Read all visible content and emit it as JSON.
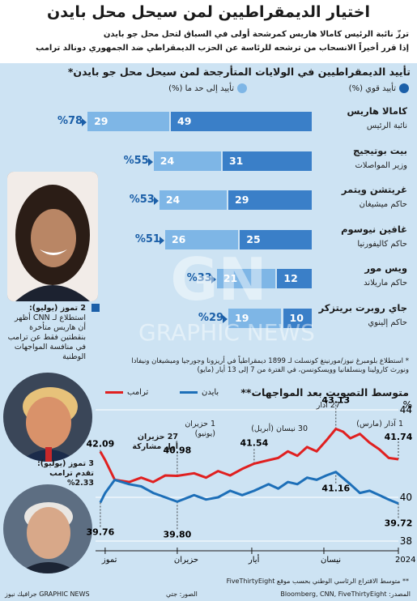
{
  "header": {
    "title": "اختيار الديمقراطيين لمن سيحل محل بايدن",
    "subtitle_1": "ترزّ نائبة الرئيس كامالا هاريس كمرشحة أولى في السباق لتحل محل جو بايدن",
    "subtitle_2": "إذا قرر أخيراً الانسحاب من ترشحه للرئاسة عن الحزب الديمقراطي ضد الجمهوري دونالد ترامب"
  },
  "support_section": {
    "title": "تأييد الديمقراطيين في الولايات المتأرجحة لمن سيحل محل جو بايدن*",
    "legend_strong": "تأييد قوي (%)",
    "legend_some": "تأييد إلى حد ما (%)",
    "colors": {
      "strong": "#3a7fc8",
      "some": "#7eb6e6",
      "panel": "#cde3f3",
      "accent": "#1b5fa8"
    },
    "candidates": [
      {
        "name": "كامالا هاريس",
        "role": "نائبة الرئيس",
        "strong": 49,
        "some": 29,
        "total_label": "%78"
      },
      {
        "name": "بيت بوتيجيج",
        "role": "وزير المواصلات",
        "strong": 31,
        "some": 24,
        "total_label": "%55"
      },
      {
        "name": "غريتشن ويتمر",
        "role": "حاكم ميشيغان",
        "strong": 29,
        "some": 24,
        "total_label": "%53"
      },
      {
        "name": "غافين نيوسوم",
        "role": "حاكم كاليفورنيا",
        "strong": 25,
        "some": 26,
        "total_label": "%51"
      },
      {
        "name": "ويس مور",
        "role": "حاكم ماريلاند",
        "strong": 12,
        "some": 21,
        "total_label": "%33"
      },
      {
        "name": "جاي روبرت بريتزكر",
        "role": "حاكم إلينوي",
        "strong": 10,
        "some": 19,
        "total_label": "%29"
      }
    ],
    "cnn_callout": {
      "date": "2 تموز (يوليو):",
      "text": "استطلاع لـ CNN أظهر أن هاريس متأخرة بنقطتين فقط عن ترامب في منافسة المواجهات الوطنية"
    },
    "footnote": "* استطلاع بلومبرغ نيوز/مورنينغ كونسلت لـ 1899 ديمقراطياً في أريزونا وجورجيا وميشيغان ونيفادا ونورث كارولينا وبنسلفانيا وويسكونسن، في الفترة من 7 إلى 13 أيار (مايو)"
  },
  "trend_section": {
    "title": "متوسط التصويت بعد المواجهات**",
    "legend_trump": "ترامب",
    "legend_biden": "بايدن",
    "colors": {
      "trump": "#e02020",
      "biden": "#1d6fb8"
    },
    "annotations": {
      "jun27": "27 حزيران",
      "jun27_sub": "أول مشاركة",
      "jul3": "3 تموز (يوليو):",
      "jul3_sub": "تقدم ترامب",
      "jul3_margin": "%2.33",
      "jun1": "1 حزيران (يونيو)",
      "apr30": "30 نيسان (أبريل)",
      "mar27": "27 آذار",
      "mar1": "1 آذار (مارس)"
    },
    "footnote": "** متوسط الاقتراع الرئاسي الوطني بحسب موقع FiveThirtyEight"
  },
  "chart_data": [
    {
      "type": "bar",
      "title": "تأييد الديمقراطيين في الولايات المتأرجحة لمن سيحل محل جو بايدن*",
      "categories": [
        "كامالا هاريس",
        "بيت بوتيجيج",
        "غريتشن ويتمر",
        "غافين نيوسوم",
        "ويس مور",
        "جاي روبرت بريتزكر"
      ],
      "series": [
        {
          "name": "تأييد قوي (%)",
          "values": [
            49,
            31,
            29,
            25,
            12,
            10
          ]
        },
        {
          "name": "تأييد إلى حد ما (%)",
          "values": [
            29,
            24,
            24,
            26,
            21,
            19
          ]
        }
      ],
      "stacked": true,
      "totals": [
        78,
        55,
        53,
        51,
        33,
        29
      ],
      "legend_position": "top"
    },
    {
      "type": "line",
      "title": "متوسط التصويت بعد المواجهات**",
      "x_ticks": [
        "آذار 2024",
        "نيسان",
        "أيار",
        "حزيران",
        "تموز"
      ],
      "y_ticks": [
        38,
        40,
        44
      ],
      "ylim": [
        38,
        44
      ],
      "x_range": [
        "2024-03-01",
        "2024-07-05"
      ],
      "series": [
        {
          "name": "ترامب",
          "points": [
            [
              "2024-03-01",
              41.74
            ],
            [
              "2024-03-05",
              41.8
            ],
            [
              "2024-03-09",
              42.2
            ],
            [
              "2024-03-13",
              42.5
            ],
            [
              "2024-03-17",
              42.9
            ],
            [
              "2024-03-21",
              42.7
            ],
            [
              "2024-03-24",
              43.0
            ],
            [
              "2024-03-27",
              43.13
            ],
            [
              "2024-03-31",
              42.6
            ],
            [
              "2024-04-04",
              42.1
            ],
            [
              "2024-04-08",
              42.3
            ],
            [
              "2024-04-12",
              41.9
            ],
            [
              "2024-04-16",
              42.1
            ],
            [
              "2024-04-20",
              41.8
            ],
            [
              "2024-04-24",
              41.7
            ],
            [
              "2024-04-30",
              41.54
            ],
            [
              "2024-05-05",
              41.3
            ],
            [
              "2024-05-10",
              41.0
            ],
            [
              "2024-05-15",
              41.2
            ],
            [
              "2024-05-20",
              40.9
            ],
            [
              "2024-05-25",
              41.1
            ],
            [
              "2024-06-01",
              40.98
            ],
            [
              "2024-06-06",
              41.0
            ],
            [
              "2024-06-11",
              40.7
            ],
            [
              "2024-06-16",
              40.9
            ],
            [
              "2024-06-21",
              40.7
            ],
            [
              "2024-06-27",
              40.8
            ],
            [
              "2024-07-01",
              41.7
            ],
            [
              "2024-07-03",
              42.09
            ]
          ]
        },
        {
          "name": "بايدن",
          "points": [
            [
              "2024-03-01",
              39.72
            ],
            [
              "2024-03-05",
              39.9
            ],
            [
              "2024-03-09",
              40.1
            ],
            [
              "2024-03-13",
              40.3
            ],
            [
              "2024-03-17",
              40.2
            ],
            [
              "2024-03-21",
              40.6
            ],
            [
              "2024-03-27",
              41.16
            ],
            [
              "2024-03-31",
              41.0
            ],
            [
              "2024-04-04",
              40.8
            ],
            [
              "2024-04-08",
              40.9
            ],
            [
              "2024-04-12",
              40.6
            ],
            [
              "2024-04-16",
              40.7
            ],
            [
              "2024-04-20",
              40.4
            ],
            [
              "2024-04-24",
              40.6
            ],
            [
              "2024-04-30",
              40.3
            ],
            [
              "2024-05-05",
              40.1
            ],
            [
              "2024-05-10",
              40.3
            ],
            [
              "2024-05-15",
              40.0
            ],
            [
              "2024-05-20",
              39.9
            ],
            [
              "2024-05-25",
              40.1
            ],
            [
              "2024-06-01",
              39.8
            ],
            [
              "2024-06-06",
              40.0
            ],
            [
              "2024-06-11",
              40.2
            ],
            [
              "2024-06-16",
              40.5
            ],
            [
              "2024-06-21",
              40.6
            ],
            [
              "2024-06-27",
              40.8
            ],
            [
              "2024-07-01",
              40.2
            ],
            [
              "2024-07-03",
              39.76
            ]
          ]
        }
      ],
      "labels": [
        {
          "x": "2024-03-27",
          "y": 43.13,
          "text": "43.13"
        },
        {
          "x": "2024-03-01",
          "y": 41.74,
          "text": "41.74"
        },
        {
          "x": "2024-04-30",
          "y": 41.54,
          "text": "41.54"
        },
        {
          "x": "2024-03-27",
          "y": 41.16,
          "text": "41.16"
        },
        {
          "x": "2024-06-01",
          "y": 40.98,
          "text": "40.98"
        },
        {
          "x": "2024-06-01",
          "y": 39.8,
          "text": "39.80"
        },
        {
          "x": "2024-03-01",
          "y": 39.72,
          "text": "39.72"
        },
        {
          "x": "2024-07-03",
          "y": 39.76,
          "text": "39.76"
        },
        {
          "x": "2024-07-03",
          "y": 42.09,
          "text": "42.09"
        }
      ],
      "legend_position": "top"
    }
  ],
  "footer": {
    "source": "المصدر: Bloomberg, CNN, FiveThirtyEight",
    "photos": "الصور: جتي",
    "brand": "GRAPHIC NEWS جرافيك نيوز"
  }
}
